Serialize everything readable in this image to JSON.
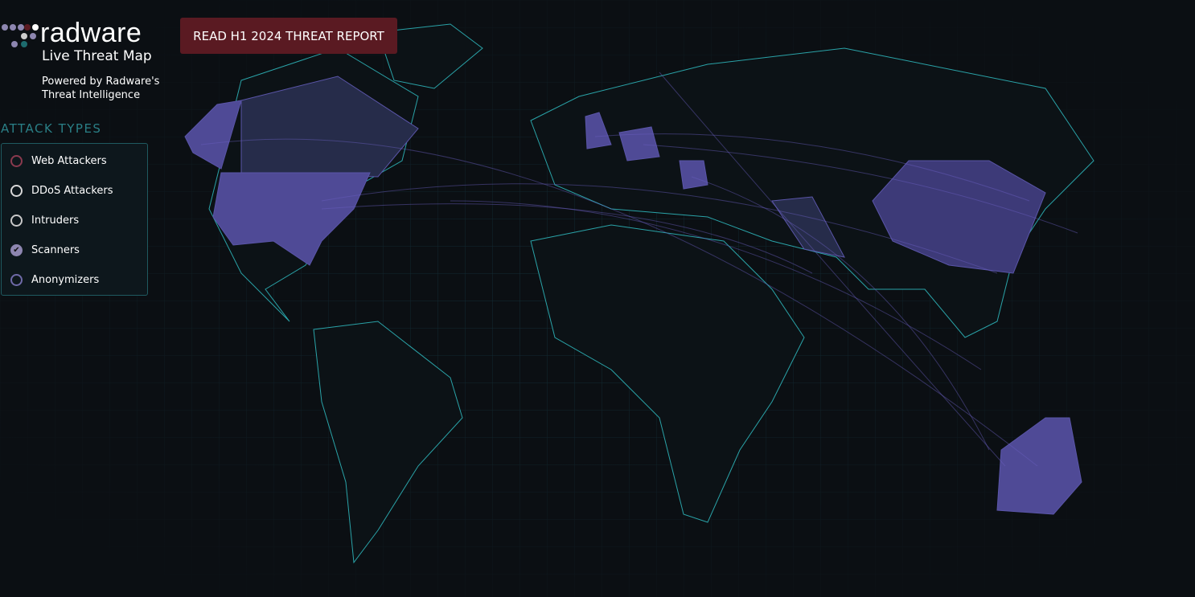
{
  "header": {
    "brand": "radware",
    "subtitle": "Live Threat Map",
    "powered_by": [
      "Powered by Radware's",
      "Threat Intelligence"
    ],
    "report_button": "READ H1 2024 THREAT REPORT"
  },
  "attack_types": {
    "title": "ATTACK TYPES",
    "items": [
      {
        "label": "Web Attackers",
        "color": "#8a3a4e",
        "checked": false
      },
      {
        "label": "DDoS Attackers",
        "color": "#d8d8d8",
        "checked": false
      },
      {
        "label": "Intruders",
        "color": "#c8c8c8",
        "checked": false
      },
      {
        "label": "Scanners",
        "color": "#8d86b0",
        "checked": true
      },
      {
        "label": "Anonymizers",
        "color": "#6f6aa8",
        "checked": false
      }
    ]
  },
  "colors": {
    "background": "#0b0f13",
    "country_outline": "#2aa3a8",
    "highlight": "#4f4a96",
    "button": "#5a1a22",
    "accent": "#2a7f86"
  }
}
